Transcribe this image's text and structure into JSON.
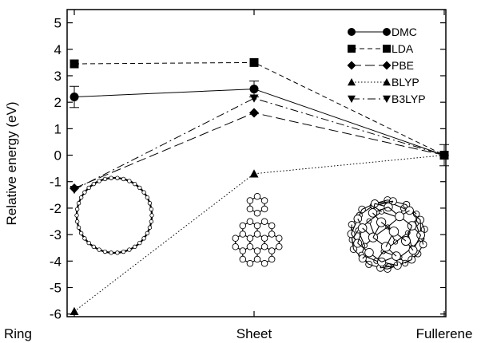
{
  "chart_data": {
    "type": "line",
    "ylabel": "Relative energy (eV)",
    "categories": [
      "Ring",
      "Sheet",
      "Fullerene"
    ],
    "yticks": [
      "-6",
      "-5",
      "-4",
      "-3",
      "-2",
      "-1",
      "0",
      "1",
      "2",
      "3",
      "4",
      "5"
    ],
    "ylim": [
      -6.1,
      5.5
    ],
    "grid": false,
    "legend_position": "top-right",
    "series": [
      {
        "name": "DMC",
        "values": [
          2.2,
          2.5,
          0.0
        ],
        "marker": "circle",
        "dash": "solid",
        "errors": [
          0.4,
          0.3,
          0.4
        ]
      },
      {
        "name": "LDA",
        "values": [
          3.45,
          3.5,
          0.0
        ],
        "marker": "square",
        "dash": "dashed"
      },
      {
        "name": "PBE",
        "values": [
          -1.25,
          1.6,
          0.0
        ],
        "marker": "diamond",
        "dash": "longdash"
      },
      {
        "name": "BLYP",
        "values": [
          -5.9,
          -0.7,
          0.0
        ],
        "marker": "triangle-up",
        "dash": "dotted"
      },
      {
        "name": "B3LYP",
        "values": [
          -1.3,
          2.15,
          0.0
        ],
        "marker": "triangle-down",
        "dash": "dashdot"
      }
    ],
    "insets": [
      {
        "name": "ring-structure"
      },
      {
        "name": "sheet-structure"
      },
      {
        "name": "fullerene-structure"
      }
    ]
  }
}
